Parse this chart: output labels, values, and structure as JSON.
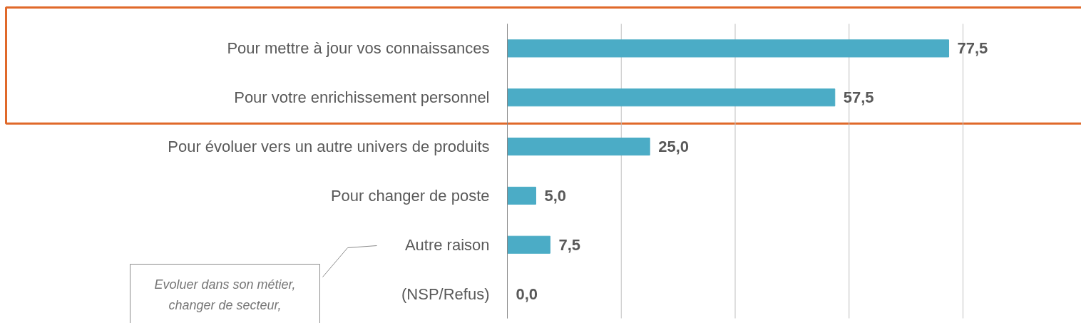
{
  "chart_data": {
    "type": "bar",
    "orientation": "horizontal",
    "categories": [
      "Pour mettre à jour vos connaissances",
      "Pour votre enrichissement personnel",
      "Pour évoluer vers un autre univers de produits",
      "Pour changer de poste",
      "Autre raison",
      "(NSP/Refus)"
    ],
    "values": [
      77.5,
      57.5,
      25.0,
      5.0,
      7.5,
      0.0
    ],
    "color": "#4bacc6",
    "value_labels": [
      "77,5",
      "57,5",
      "25,0",
      "5,0",
      "7,5",
      "0,0"
    ],
    "xticks": [
      {
        "value": 0,
        "label": null
      },
      {
        "value": 20,
        "label": null
      },
      {
        "value": 40,
        "label": null
      },
      {
        "value": 60,
        "label": null
      },
      {
        "value": 80,
        "label": null
      }
    ],
    "tick_labels": "y",
    "grid": "x",
    "bands": [
      {
        "axis": "y",
        "from": "Pour mettre à jour vos connaissances",
        "to": "Pour votre enrichissement personnel",
        "color": "#e0692a"
      }
    ],
    "annotations": [
      "Evoluer dans son métier,\nchanger de secteur,"
    ]
  }
}
